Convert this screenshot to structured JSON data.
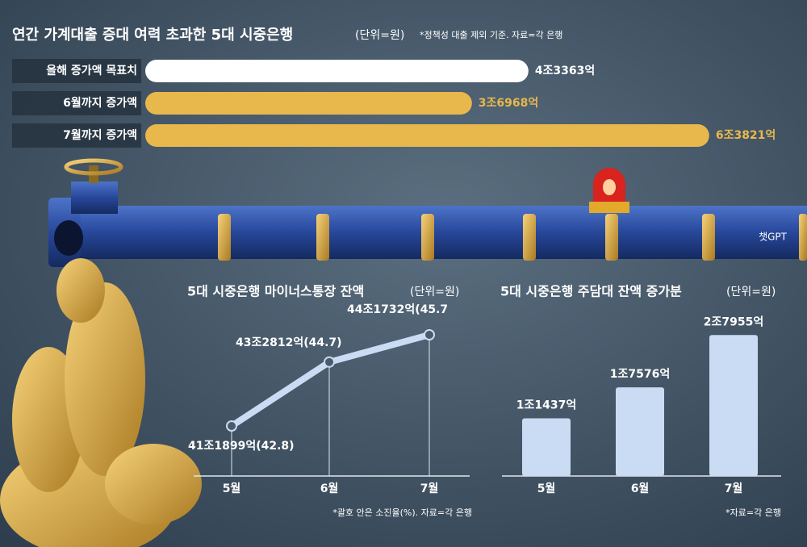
{
  "chart_data": [
    {
      "type": "hbar",
      "title": "연간 가계대출 증대 여력 초과한 5대 시중은행",
      "unit": "(단위=원)",
      "note": "*정책성 대출 제외 기준. 자료=각 은행",
      "categories": [
        "올해 증가액 목표치",
        "6월까지 증가액",
        "7월까지 증가액"
      ],
      "values": [
        43363,
        36968,
        63821
      ],
      "value_labels": [
        "4조3363억",
        "3조6968억",
        "6조3821억"
      ],
      "colors": [
        "#ffffff",
        "#e9b84c",
        "#e9b84c"
      ]
    },
    {
      "type": "line",
      "title": "5대 시중은행 마이너스통장 잔액",
      "unit": "(단위=원)",
      "note": "*괄호 안은 소진율(%). 자료=각 은행",
      "categories": [
        "5월",
        "6월",
        "7월"
      ],
      "values": [
        411899,
        432812,
        441732
      ],
      "value_labels": [
        "41조1899억",
        "43조2812억",
        "44조1732억"
      ],
      "rate_labels": [
        "(42.8)",
        "(44.7)",
        "(45.7"
      ],
      "color": "#c9dcf3"
    },
    {
      "type": "bar",
      "title": "5대 시중은행 주담대 잔액 증가분",
      "unit": "(단위=원)",
      "note": "*자료=각 은행",
      "categories": [
        "5월",
        "6월",
        "7월"
      ],
      "values": [
        11437,
        17576,
        27955
      ],
      "value_labels": [
        "1조1437억",
        "1조7576억",
        "2조7955억"
      ],
      "color": "#c9dcf3"
    }
  ],
  "credit": "챗GPT"
}
